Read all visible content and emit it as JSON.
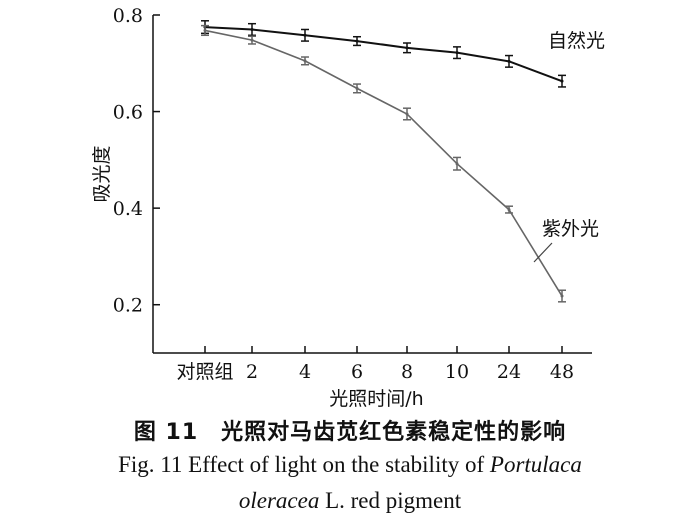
{
  "chart_data": {
    "type": "line",
    "categories": [
      "对照组",
      "2",
      "4",
      "6",
      "8",
      "10",
      "24",
      "48"
    ],
    "xlabel": "光照时间/h",
    "ylabel": "吸光度",
    "ylim": [
      0.1,
      0.8
    ],
    "yticks": [
      "0.2",
      "0.4",
      "0.6",
      "0.8"
    ],
    "ytick_values": [
      0.2,
      0.4,
      0.6,
      0.8
    ],
    "grid": false,
    "series": [
      {
        "name": "自然光",
        "color": "#111111",
        "values": [
          0.775,
          0.77,
          0.758,
          0.746,
          0.732,
          0.722,
          0.704,
          0.663
        ],
        "errors": [
          0.013,
          0.012,
          0.012,
          0.009,
          0.01,
          0.012,
          0.012,
          0.012
        ]
      },
      {
        "name": "紫外光",
        "color": "#666666",
        "values": [
          0.768,
          0.748,
          0.705,
          0.648,
          0.595,
          0.492,
          0.397,
          0.218
        ],
        "errors": [
          0.01,
          0.008,
          0.008,
          0.009,
          0.012,
          0.013,
          0.007,
          0.012
        ]
      }
    ]
  },
  "caption": {
    "zh": "图 11　光照对马齿苋红色素稳定性的影响",
    "en_line1_prefix": "Fig. 11 Effect of light on the stability of ",
    "en_line1_italic": "Portulaca",
    "en_line2_italic": "oleracea",
    "en_line2_suffix": " L.  red pigment"
  }
}
